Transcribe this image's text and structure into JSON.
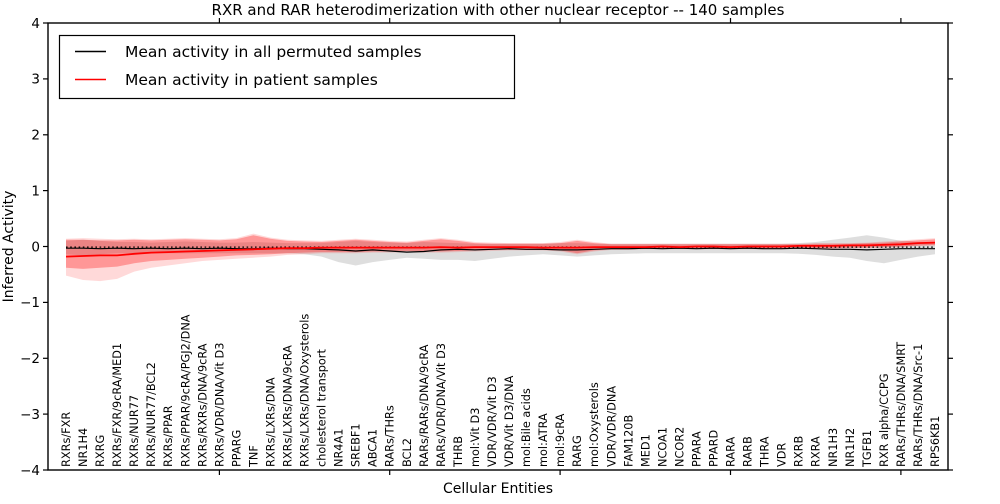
{
  "chart_data": {
    "type": "line",
    "title": "RXR and RAR heterodimerization with other nuclear receptor -- 140 samples",
    "xlabel": "Cellular Entities",
    "ylabel": "Inferred Activity",
    "ylim": [
      -4,
      4
    ],
    "ytick_values": [
      4,
      3,
      2,
      1,
      0,
      -1,
      -2,
      -3,
      -4
    ],
    "ytick_labels": [
      "4",
      "3",
      "2",
      "1",
      "0",
      "−1",
      "−2",
      "−3",
      "−4"
    ],
    "xtick_major_values": [
      10,
      20,
      30,
      40,
      50
    ],
    "grid": false,
    "legend_position": "upper left",
    "categories": [
      "RXRs/FXR",
      "NR1H4",
      "RXRG",
      "RXRs/FXR/9cRA/MED1",
      "RXRs/NUR77",
      "RXRs/NUR77/BCL2",
      "RXRs/PPAR",
      "RXRs/PPAR/9cRA/PGJ2/DNA",
      "RXRs/RXRs/DNA/9cRA",
      "RXRs/VDR/DNA/Vit D3",
      "PPARG",
      "TNF",
      "RXRs/LXRs/DNA",
      "RXRs/LXRs/DNA/9cRA",
      "RXRs/LXRs/DNA/Oxysterols",
      "cholesterol transport",
      "NR4A1",
      "SREBF1",
      "ABCA1",
      "RARs/THRs",
      "BCL2",
      "RARs/RARs/DNA/9cRA",
      "RARs/VDR/DNA/Vit D3",
      "THRB",
      "mol:Vit D3",
      "VDR/VDR/Vit D3",
      "VDR/Vit D3/DNA",
      "mol:Bile acids",
      "mol:ATRA",
      "mol:9cRA",
      "RARG",
      "mol:Oxysterols",
      "VDR/VDR/DNA",
      "FAM120B",
      "MED1",
      "NCOA1",
      "NCOR2",
      "PPARA",
      "PPARD",
      "RARA",
      "RARB",
      "THRA",
      "VDR",
      "RXRB",
      "RXRA",
      "NR1H3",
      "NR1H2",
      "TGFB1",
      "RXR alpha/CCPG",
      "RARs/THRs/DNA/SMRT",
      "RARs/THRs/DNA/Src-1",
      "RPS6KB1"
    ],
    "series": [
      {
        "name": "Mean activity in all permuted samples",
        "color": "#000000",
        "style": "solid",
        "values": [
          -0.03,
          -0.03,
          -0.04,
          -0.03,
          -0.04,
          -0.03,
          -0.04,
          -0.03,
          -0.04,
          -0.03,
          -0.04,
          -0.04,
          -0.03,
          -0.04,
          -0.04,
          -0.05,
          -0.06,
          -0.08,
          -0.06,
          -0.08,
          -0.1,
          -0.09,
          -0.06,
          -0.05,
          -0.06,
          -0.05,
          -0.04,
          -0.05,
          -0.05,
          -0.06,
          -0.06,
          -0.05,
          -0.04,
          -0.04,
          -0.03,
          -0.04,
          -0.03,
          -0.04,
          -0.03,
          -0.04,
          -0.03,
          -0.04,
          -0.04,
          -0.03,
          -0.04,
          -0.05,
          -0.05,
          -0.06,
          -0.05,
          -0.04,
          -0.04,
          -0.04
        ]
      },
      {
        "name": "Mean activity in patient samples",
        "color": "#ff0000",
        "style": "solid",
        "values": [
          -0.18,
          -0.17,
          -0.16,
          -0.16,
          -0.13,
          -0.11,
          -0.1,
          -0.09,
          -0.08,
          -0.07,
          -0.06,
          -0.05,
          -0.04,
          -0.03,
          -0.03,
          -0.02,
          -0.02,
          -0.02,
          -0.02,
          -0.02,
          -0.02,
          -0.02,
          -0.01,
          -0.02,
          -0.01,
          -0.01,
          -0.01,
          -0.01,
          -0.02,
          -0.02,
          -0.02,
          -0.01,
          -0.01,
          -0.01,
          -0.01,
          0.0,
          -0.01,
          0.0,
          0.0,
          -0.01,
          0.0,
          0.0,
          0.0,
          0.01,
          0.01,
          0.01,
          0.02,
          0.02,
          0.03,
          0.04,
          0.06,
          0.07
        ]
      }
    ],
    "zero_reference": {
      "value": -0.01,
      "style": "dotted",
      "color": "#000000"
    },
    "bands": [
      {
        "name": "permuted-range",
        "color": "rgba(0,0,0,0.13)",
        "upper": [
          0.1,
          0.12,
          0.1,
          0.08,
          0.08,
          0.07,
          0.08,
          0.09,
          0.08,
          0.07,
          0.07,
          0.08,
          0.07,
          0.06,
          0.06,
          0.06,
          0.08,
          0.1,
          0.08,
          0.07,
          0.06,
          0.08,
          0.07,
          0.06,
          0.05,
          0.05,
          0.05,
          0.05,
          0.05,
          0.06,
          0.06,
          0.05,
          0.05,
          0.05,
          0.05,
          0.05,
          0.05,
          0.05,
          0.05,
          0.05,
          0.05,
          0.05,
          0.05,
          0.06,
          0.08,
          0.12,
          0.16,
          0.2,
          0.16,
          0.1,
          0.08,
          0.06
        ],
        "lower": [
          -0.14,
          -0.16,
          -0.14,
          -0.12,
          -0.12,
          -0.12,
          -0.12,
          -0.12,
          -0.12,
          -0.12,
          -0.12,
          -0.12,
          -0.12,
          -0.12,
          -0.14,
          -0.18,
          -0.28,
          -0.34,
          -0.28,
          -0.24,
          -0.2,
          -0.22,
          -0.24,
          -0.24,
          -0.26,
          -0.22,
          -0.18,
          -0.16,
          -0.14,
          -0.16,
          -0.18,
          -0.16,
          -0.14,
          -0.13,
          -0.12,
          -0.12,
          -0.12,
          -0.12,
          -0.12,
          -0.12,
          -0.12,
          -0.12,
          -0.12,
          -0.13,
          -0.15,
          -0.18,
          -0.2,
          -0.26,
          -0.3,
          -0.24,
          -0.18,
          -0.14
        ]
      },
      {
        "name": "patient-range-outer",
        "color": "rgba(255,0,0,0.15)",
        "upper": [
          0.14,
          0.15,
          0.14,
          0.13,
          0.14,
          0.13,
          0.14,
          0.15,
          0.14,
          0.13,
          0.15,
          0.23,
          0.16,
          0.12,
          0.11,
          0.1,
          0.12,
          0.14,
          0.12,
          0.1,
          0.09,
          0.12,
          0.15,
          0.12,
          0.08,
          0.07,
          0.06,
          0.06,
          0.06,
          0.08,
          0.12,
          0.08,
          0.05,
          0.05,
          0.05,
          0.05,
          0.05,
          0.05,
          0.05,
          0.05,
          0.05,
          0.05,
          0.05,
          0.05,
          0.06,
          0.06,
          0.06,
          0.07,
          0.09,
          0.11,
          0.13,
          0.15
        ],
        "lower": [
          -0.52,
          -0.6,
          -0.62,
          -0.58,
          -0.45,
          -0.38,
          -0.34,
          -0.3,
          -0.26,
          -0.24,
          -0.22,
          -0.2,
          -0.18,
          -0.15,
          -0.14,
          -0.12,
          -0.12,
          -0.12,
          -0.11,
          -0.11,
          -0.1,
          -0.11,
          -0.11,
          -0.1,
          -0.09,
          -0.08,
          -0.07,
          -0.07,
          -0.07,
          -0.09,
          -0.14,
          -0.09,
          -0.06,
          -0.06,
          -0.05,
          -0.05,
          -0.05,
          -0.05,
          -0.05,
          -0.05,
          -0.05,
          -0.05,
          -0.05,
          -0.04,
          -0.04,
          -0.04,
          -0.03,
          -0.03,
          -0.02,
          -0.01,
          0.02,
          0.03
        ]
      },
      {
        "name": "patient-range-inner",
        "color": "rgba(255,0,0,0.30)",
        "upper": [
          0.12,
          0.12,
          0.11,
          0.11,
          0.12,
          0.11,
          0.12,
          0.13,
          0.12,
          0.11,
          0.13,
          0.2,
          0.14,
          0.1,
          0.09,
          0.08,
          0.1,
          0.12,
          0.1,
          0.08,
          0.07,
          0.1,
          0.13,
          0.1,
          0.06,
          0.05,
          0.05,
          0.05,
          0.05,
          0.06,
          0.1,
          0.06,
          0.04,
          0.04,
          0.04,
          0.04,
          0.04,
          0.04,
          0.04,
          0.04,
          0.04,
          0.04,
          0.04,
          0.04,
          0.05,
          0.05,
          0.05,
          0.06,
          0.07,
          0.09,
          0.11,
          0.13
        ],
        "lower": [
          -0.38,
          -0.4,
          -0.38,
          -0.36,
          -0.3,
          -0.26,
          -0.24,
          -0.22,
          -0.2,
          -0.18,
          -0.16,
          -0.15,
          -0.14,
          -0.12,
          -0.11,
          -0.1,
          -0.1,
          -0.1,
          -0.09,
          -0.09,
          -0.08,
          -0.09,
          -0.09,
          -0.08,
          -0.07,
          -0.06,
          -0.06,
          -0.06,
          -0.06,
          -0.07,
          -0.12,
          -0.07,
          -0.05,
          -0.05,
          -0.04,
          -0.04,
          -0.04,
          -0.04,
          -0.04,
          -0.04,
          -0.04,
          -0.04,
          -0.04,
          -0.03,
          -0.03,
          -0.03,
          -0.02,
          -0.02,
          -0.01,
          0.0,
          0.01,
          0.02
        ]
      }
    ]
  }
}
